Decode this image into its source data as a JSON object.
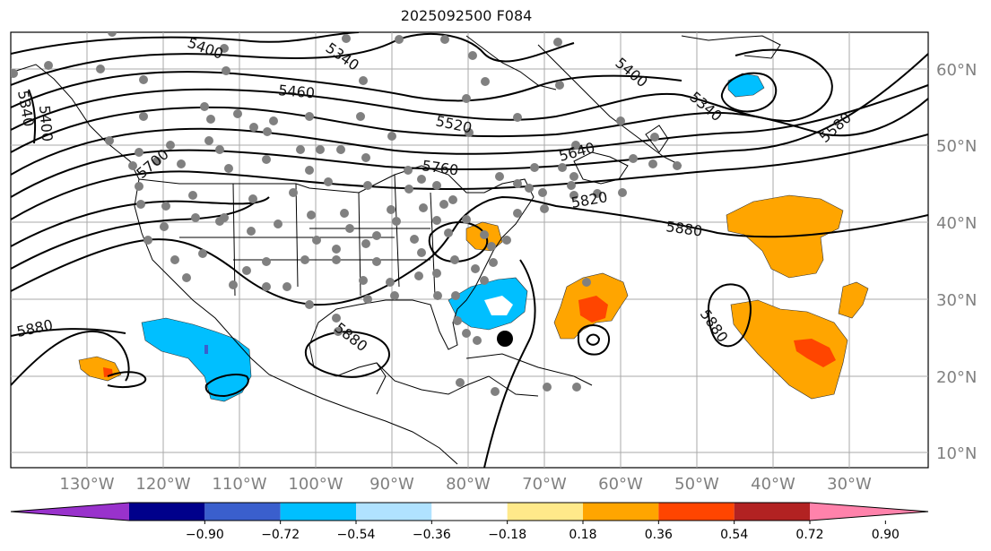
{
  "title": "2025092500 F084",
  "lon_labels": [
    "130°W",
    "120°W",
    "110°W",
    "100°W",
    "90°W",
    "80°W",
    "70°W",
    "60°W",
    "50°W",
    "40°W",
    "30°W"
  ],
  "lat_labels": [
    "60°N",
    "50°N",
    "40°N",
    "30°N",
    "20°N",
    "10°N"
  ],
  "contour_labels": [
    "5400",
    "5340",
    "5460",
    "5520",
    "5400",
    "5340",
    "5580",
    "5700",
    "5760",
    "5640",
    "5820",
    "5880",
    "5880",
    "5880",
    "5880",
    "5340",
    "5400"
  ],
  "colorbar": {
    "colors": [
      "#9932cc",
      "#00008b",
      "#3a5fcd",
      "#00bfff",
      "#b0e2ff",
      "#ffffff",
      "#ffe98a",
      "#ffa500",
      "#ff4500",
      "#b22222",
      "#ff82ab"
    ],
    "ticks": [
      "−0.90",
      "−0.72",
      "−0.54",
      "−0.36",
      "−0.18",
      "0.18",
      "0.36",
      "0.54",
      "0.72",
      "0.90"
    ]
  }
}
